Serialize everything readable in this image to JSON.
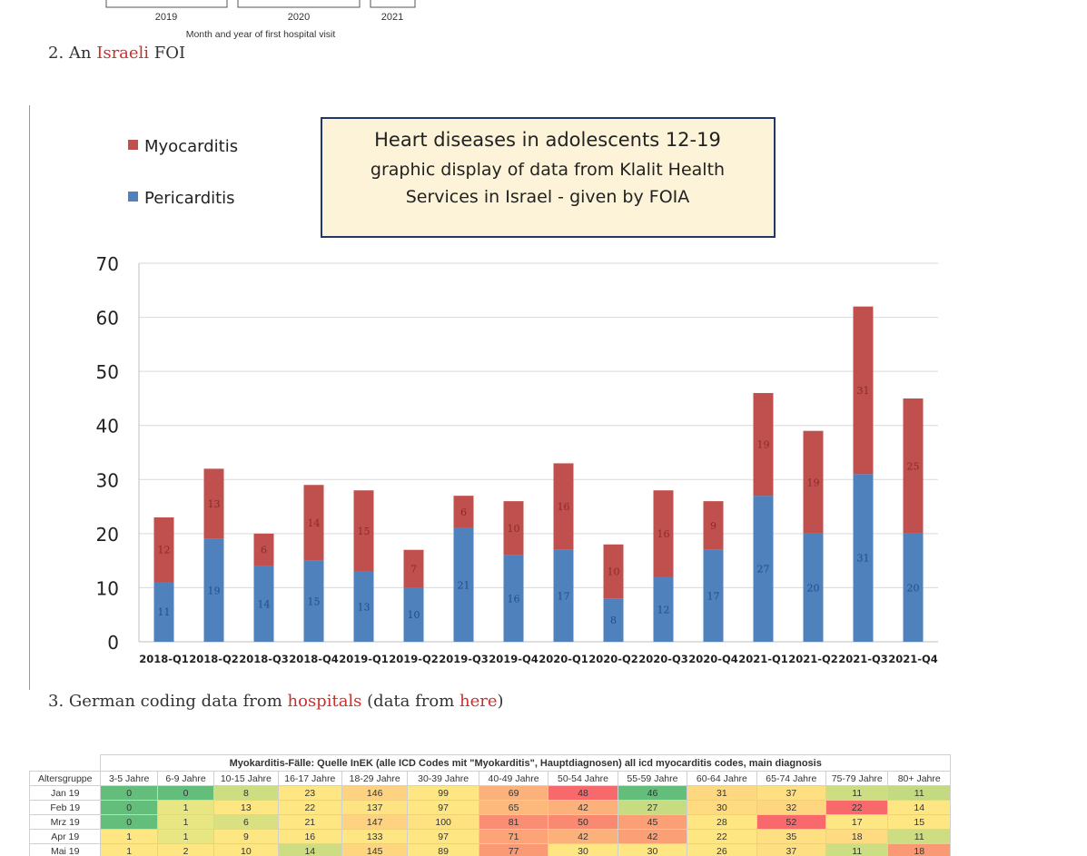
{
  "prev_chart": {
    "years": [
      "2019",
      "2020",
      "2021"
    ],
    "xlabel": "Month and year of first hospital visit"
  },
  "para2": {
    "prefix": "2. An ",
    "link": "Israeli",
    "suffix": " FOI"
  },
  "para3": {
    "prefix": "3. German coding data from ",
    "link1": "hospitals",
    "middle": " (data from ",
    "link2": "here",
    "suffix": ")"
  },
  "chart_data": {
    "type": "bar",
    "stacked": true,
    "title_lines": [
      "Heart diseases in adolescents 12-19",
      "graphic display of data from Klalit Health",
      "Services in Israel - given by FOIA"
    ],
    "categories": [
      "2018-Q1",
      "2018-Q2",
      "2018-Q3",
      "2018-Q4",
      "2019-Q1",
      "2019-Q2",
      "2019-Q3",
      "2019-Q4",
      "2020-Q1",
      "2020-Q2",
      "2020-Q3",
      "2020-Q4",
      "2021-Q1",
      "2021-Q2",
      "2021-Q3",
      "2021-Q4"
    ],
    "series": [
      {
        "name": "Pericarditis",
        "color": "#4f81bd",
        "values": [
          11,
          19,
          14,
          15,
          13,
          10,
          21,
          16,
          17,
          8,
          12,
          17,
          27,
          20,
          31,
          20
        ]
      },
      {
        "name": "Myocarditis",
        "color": "#c0504d",
        "values": [
          12,
          13,
          6,
          14,
          15,
          7,
          6,
          10,
          16,
          10,
          16,
          9,
          19,
          19,
          31,
          25
        ]
      }
    ],
    "legend_order": [
      "Myocarditis",
      "Pericarditis"
    ],
    "legend_position": "top-left",
    "yticks": [
      0,
      10,
      20,
      30,
      40,
      50,
      60,
      70
    ],
    "ylim": [
      0,
      70
    ],
    "grid": true
  },
  "table": {
    "title": "Myokarditis-Fälle: Quelle InEK (alle ICD Codes mit \"Myokarditis\", Hauptdiagnosen) all icd myocarditis codes, main diagnosis",
    "header_label": "Altersgruppe",
    "columns": [
      "3-5 Jahre",
      "6-9 Jahre",
      "10-15 Jahre",
      "16-17 Jahre",
      "18-29 Jahre",
      "30-39 Jahre",
      "40-49 Jahre",
      "50-54 Jahre",
      "55-59 Jahre",
      "60-64 Jahre",
      "65-74 Jahre",
      "75-79 Jahre",
      "80+ Jahre"
    ],
    "rows": [
      {
        "label": "Jan 19",
        "values": [
          "0",
          "0",
          "8",
          "23",
          "146",
          "99",
          "69",
          "48",
          "46",
          "31",
          "37",
          "11",
          "11"
        ]
      },
      {
        "label": "Feb 19",
        "values": [
          "0",
          "1",
          "13",
          "22",
          "137",
          "97",
          "65",
          "42",
          "27",
          "30",
          "32",
          "22",
          "14"
        ]
      },
      {
        "label": "Mrz 19",
        "values": [
          "0",
          "1",
          "6",
          "21",
          "147",
          "100",
          "81",
          "50",
          "45",
          "28",
          "52",
          "17",
          "15"
        ]
      },
      {
        "label": "Apr 19",
        "values": [
          "1",
          "1",
          "9",
          "16",
          "133",
          "97",
          "71",
          "42",
          "42",
          "22",
          "35",
          "18",
          "11"
        ]
      },
      {
        "label": "Mai 19",
        "values": [
          "1",
          "2",
          "10",
          "14",
          "145",
          "89",
          "77",
          "30",
          "30",
          "26",
          "37",
          "11",
          "18"
        ]
      }
    ],
    "cell_colors": [
      [
        "#63be7b",
        "#63be7b",
        "#cddd82",
        "#fee683",
        "#fed280",
        "#fee683",
        "#fcb17a",
        "#f8696b",
        "#63be7b",
        "#fed880",
        "#fee082",
        "#cddd82",
        "#c4da81"
      ],
      [
        "#63be7b",
        "#e8e583",
        "#fee683",
        "#fee683",
        "#fee382",
        "#fee683",
        "#fcb97b",
        "#fcb17a",
        "#c7db81",
        "#fedb81",
        "#fed680",
        "#f8696b",
        "#fee683"
      ],
      [
        "#63be7b",
        "#e8e583",
        "#d8e082",
        "#fee683",
        "#fed280",
        "#fee282",
        "#fa8e73",
        "#f98970",
        "#fba076",
        "#fee683",
        "#f8696b",
        "#fee683",
        "#fee683"
      ],
      [
        "#fee683",
        "#e8e583",
        "#fee683",
        "#fee683",
        "#fee683",
        "#fee683",
        "#fca377",
        "#fcb17a",
        "#fba076",
        "#fee683",
        "#fee082",
        "#fedb81",
        "#cddd82"
      ],
      [
        "#fee683",
        "#fee683",
        "#fee683",
        "#cddd82",
        "#fed680",
        "#fee683",
        "#fa9a75",
        "#fee683",
        "#fee683",
        "#fee683",
        "#fee082",
        "#cddd82",
        "#fa9a75"
      ]
    ]
  }
}
